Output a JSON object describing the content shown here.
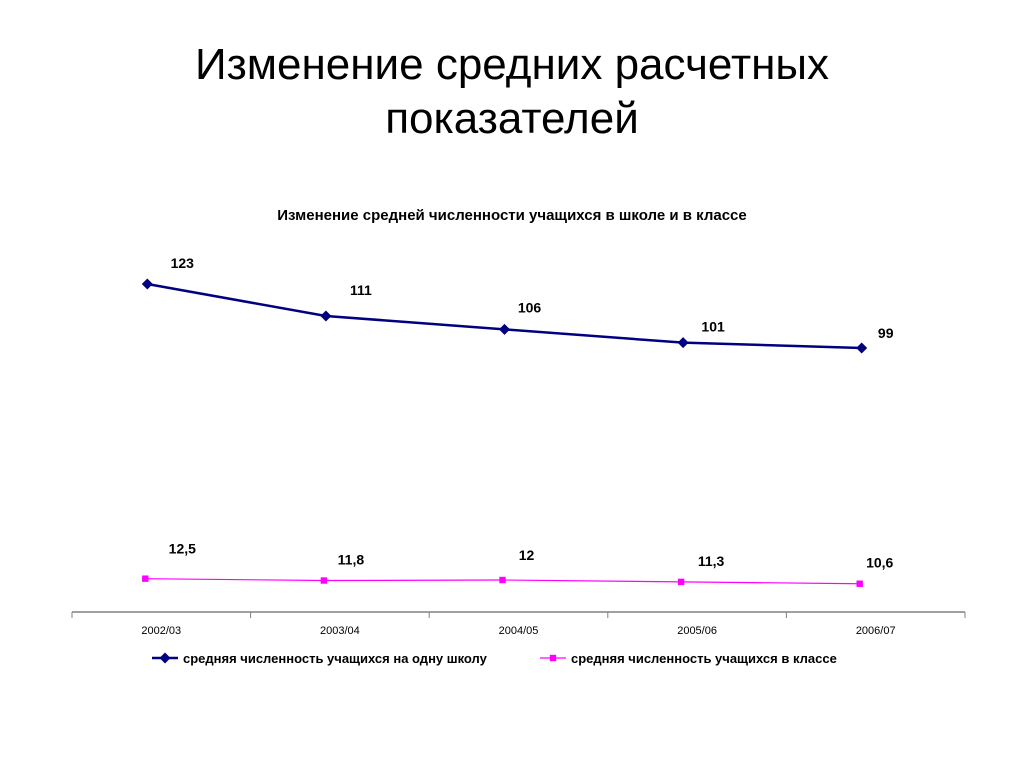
{
  "slide": {
    "title_line1": "Изменение средних расчетных",
    "title_line2": "показателей"
  },
  "chart_data": {
    "type": "line",
    "title": "Изменение средней численности учащихся в школе и в классе",
    "categories": [
      "2002/03",
      "2003/04",
      "2004/05",
      "2005/06",
      "2006/07"
    ],
    "series": [
      {
        "name": "средняя численность учащихся на одну школу",
        "values": [
          123,
          111,
          106,
          101,
          99
        ],
        "labels": [
          "123",
          "111",
          "106",
          "101",
          "99"
        ],
        "color": "#000080",
        "marker": "diamond"
      },
      {
        "name": "средняя численность учащихся в классе",
        "values": [
          12.5,
          11.8,
          12,
          11.3,
          10.6
        ],
        "labels": [
          "12,5",
          "11,8",
          "12",
          "11,3",
          "10,6"
        ],
        "color": "#FF00FF",
        "marker": "square"
      }
    ],
    "ylim": [
      0,
      135
    ],
    "grid": false,
    "legend": "bottom"
  }
}
